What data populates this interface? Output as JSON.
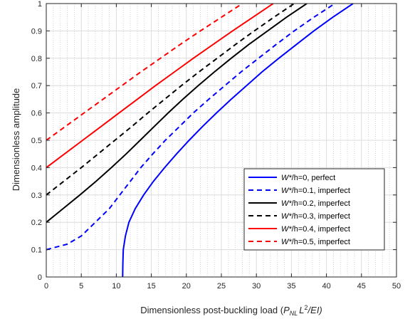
{
  "chart_data": {
    "type": "line",
    "xlabel": {
      "prefix": "Dimensionless post-buckling load (",
      "P": "P",
      "NL": "NL",
      "L": "L",
      "exp": "2",
      "suffix": "/EI)"
    },
    "ylabel": "Dimensionless amplitude",
    "xlim": [
      0,
      50
    ],
    "ylim": [
      0,
      1
    ],
    "xticks": [
      0,
      5,
      10,
      15,
      20,
      25,
      30,
      35,
      40,
      45,
      50
    ],
    "yticks": [
      0,
      0.1,
      0.2,
      0.3,
      0.4,
      0.5,
      0.6,
      0.7,
      0.8,
      0.9,
      1
    ],
    "xtick_labels": [
      "0",
      "5",
      "10",
      "15",
      "20",
      "25",
      "30",
      "35",
      "40",
      "45",
      "50"
    ],
    "ytick_labels": [
      "0",
      "0.1",
      "0.2",
      "0.3",
      "0.4",
      "0.5",
      "0.6",
      "0.7",
      "0.8",
      "0.9",
      "1"
    ],
    "grid": true,
    "minor_grid": true,
    "legend_position": "lower-right",
    "series": [
      {
        "name": "W*/h=0, perfect",
        "legend_prefix": "W*",
        "legend_suffix": "/h=0, perfect",
        "color": "#0000ff",
        "dash": "solid",
        "points": [
          [
            10.9,
            0.0
          ],
          [
            10.93,
            0.05
          ],
          [
            11.0,
            0.1
          ],
          [
            11.3,
            0.15
          ],
          [
            11.8,
            0.2
          ],
          [
            12.7,
            0.25
          ],
          [
            13.9,
            0.3
          ],
          [
            15.3,
            0.35
          ],
          [
            16.9,
            0.4
          ],
          [
            18.6,
            0.45
          ],
          [
            20.4,
            0.5
          ],
          [
            22.3,
            0.55
          ],
          [
            24.3,
            0.6
          ],
          [
            26.4,
            0.65
          ],
          [
            28.6,
            0.7
          ],
          [
            30.8,
            0.75
          ],
          [
            33.2,
            0.8
          ],
          [
            35.7,
            0.85
          ],
          [
            38.2,
            0.9
          ],
          [
            40.9,
            0.95
          ],
          [
            43.8,
            1.0
          ]
        ]
      },
      {
        "name": "W*/h=0.1, imperfect",
        "legend_prefix": "W*",
        "legend_suffix": "/h=0.1, imperfect",
        "color": "#0000ff",
        "dash": "dashed",
        "points": [
          [
            0,
            0.1
          ],
          [
            3,
            0.12
          ],
          [
            5,
            0.15
          ],
          [
            7,
            0.2
          ],
          [
            9,
            0.25
          ],
          [
            10.5,
            0.3
          ],
          [
            12,
            0.35
          ],
          [
            13.5,
            0.4
          ],
          [
            15.2,
            0.45
          ],
          [
            17,
            0.5
          ],
          [
            19,
            0.55
          ],
          [
            21,
            0.6
          ],
          [
            23.2,
            0.65
          ],
          [
            25.5,
            0.7
          ],
          [
            27.8,
            0.75
          ],
          [
            30.3,
            0.8
          ],
          [
            32.8,
            0.85
          ],
          [
            35.4,
            0.9
          ],
          [
            38.2,
            0.95
          ],
          [
            41.2,
            1.0
          ]
        ]
      },
      {
        "name": "W*/h=0.2, imperfect",
        "legend_prefix": "W*",
        "legend_suffix": "/h=0.2, imperfect",
        "color": "#000000",
        "dash": "solid",
        "points": [
          [
            0,
            0.2
          ],
          [
            2.4,
            0.25
          ],
          [
            4.8,
            0.3
          ],
          [
            7.1,
            0.35
          ],
          [
            9.3,
            0.4
          ],
          [
            11.4,
            0.45
          ],
          [
            13.4,
            0.5
          ],
          [
            15.4,
            0.55
          ],
          [
            17.4,
            0.6
          ],
          [
            19.5,
            0.65
          ],
          [
            21.7,
            0.7
          ],
          [
            24,
            0.75
          ],
          [
            26.4,
            0.8
          ],
          [
            28.9,
            0.85
          ],
          [
            31.6,
            0.9
          ],
          [
            34.3,
            0.95
          ],
          [
            37.2,
            1.0
          ]
        ]
      },
      {
        "name": "W*/h=0.3, imperfect",
        "legend_prefix": "W*",
        "legend_suffix": "/h=0.3, imperfect",
        "color": "#000000",
        "dash": "dashed",
        "points": [
          [
            0,
            0.3
          ],
          [
            2.5,
            0.35
          ],
          [
            5,
            0.4
          ],
          [
            7.4,
            0.45
          ],
          [
            9.8,
            0.5
          ],
          [
            12.2,
            0.55
          ],
          [
            14.5,
            0.6
          ],
          [
            16.9,
            0.65
          ],
          [
            19.3,
            0.7
          ],
          [
            21.8,
            0.75
          ],
          [
            24.4,
            0.8
          ],
          [
            27,
            0.85
          ],
          [
            29.7,
            0.9
          ],
          [
            32.5,
            0.95
          ],
          [
            35.4,
            1.0
          ]
        ]
      },
      {
        "name": "W*/h=0.4, imperfect",
        "legend_prefix": "W*",
        "legend_suffix": "/h=0.4, imperfect",
        "color": "#ff0000",
        "dash": "solid",
        "points": [
          [
            0,
            0.4
          ],
          [
            2.6,
            0.45
          ],
          [
            5.2,
            0.5
          ],
          [
            7.8,
            0.55
          ],
          [
            10.4,
            0.6
          ],
          [
            13,
            0.65
          ],
          [
            15.6,
            0.7
          ],
          [
            18.3,
            0.75
          ],
          [
            21,
            0.8
          ],
          [
            23.8,
            0.85
          ],
          [
            26.6,
            0.9
          ],
          [
            29.5,
            0.95
          ],
          [
            32.4,
            1.0
          ]
        ]
      },
      {
        "name": "W*/h=0.5, imperfect",
        "legend_prefix": "W*",
        "legend_suffix": "/h=0.5, imperfect",
        "color": "#ff0000",
        "dash": "dashed",
        "points": [
          [
            0,
            0.5
          ],
          [
            2.7,
            0.55
          ],
          [
            5.4,
            0.6
          ],
          [
            8.1,
            0.65
          ],
          [
            10.8,
            0.7
          ],
          [
            13.5,
            0.75
          ],
          [
            16.3,
            0.8
          ],
          [
            19.1,
            0.85
          ],
          [
            22,
            0.9
          ],
          [
            25,
            0.95
          ],
          [
            28,
            1.0
          ]
        ]
      }
    ]
  }
}
